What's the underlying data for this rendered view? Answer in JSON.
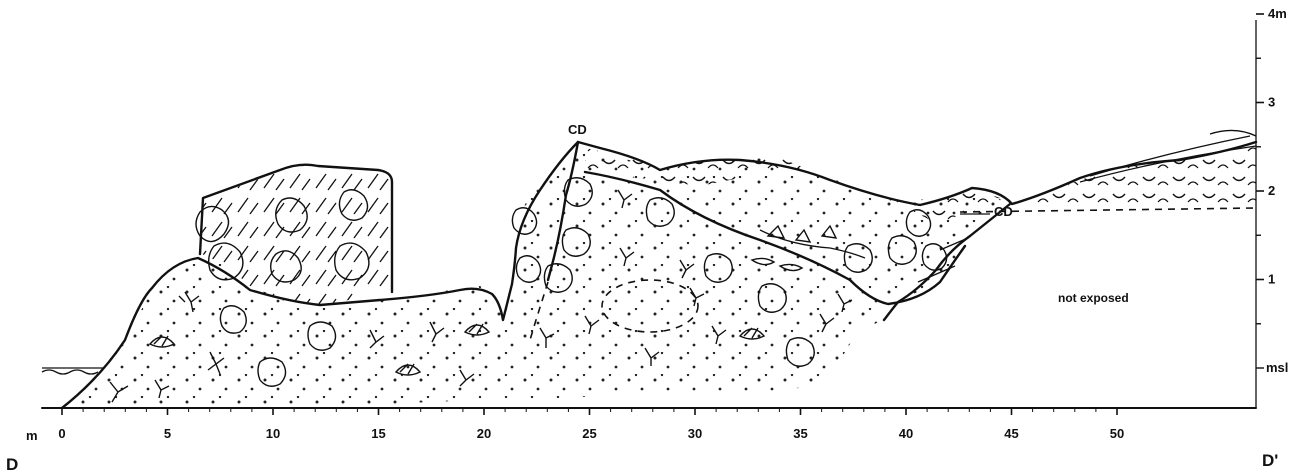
{
  "section": {
    "start_label": "D",
    "end_label": "D'",
    "unit_label": "m",
    "x_ticks": [
      "0",
      "5",
      "10",
      "15",
      "20",
      "25",
      "30",
      "35",
      "40",
      "45",
      "50"
    ],
    "y_ticks": [
      {
        "value": 1,
        "label": "1"
      },
      {
        "value": 2,
        "label": "2"
      },
      {
        "value": 3,
        "label": "3"
      },
      {
        "value": 4,
        "label": "4m"
      }
    ],
    "datum_label": "msl",
    "annotations": [
      {
        "id": "cd1",
        "text": "CD"
      },
      {
        "id": "cd2",
        "text": "CD"
      },
      {
        "id": "note",
        "text": "not exposed"
      }
    ]
  }
}
